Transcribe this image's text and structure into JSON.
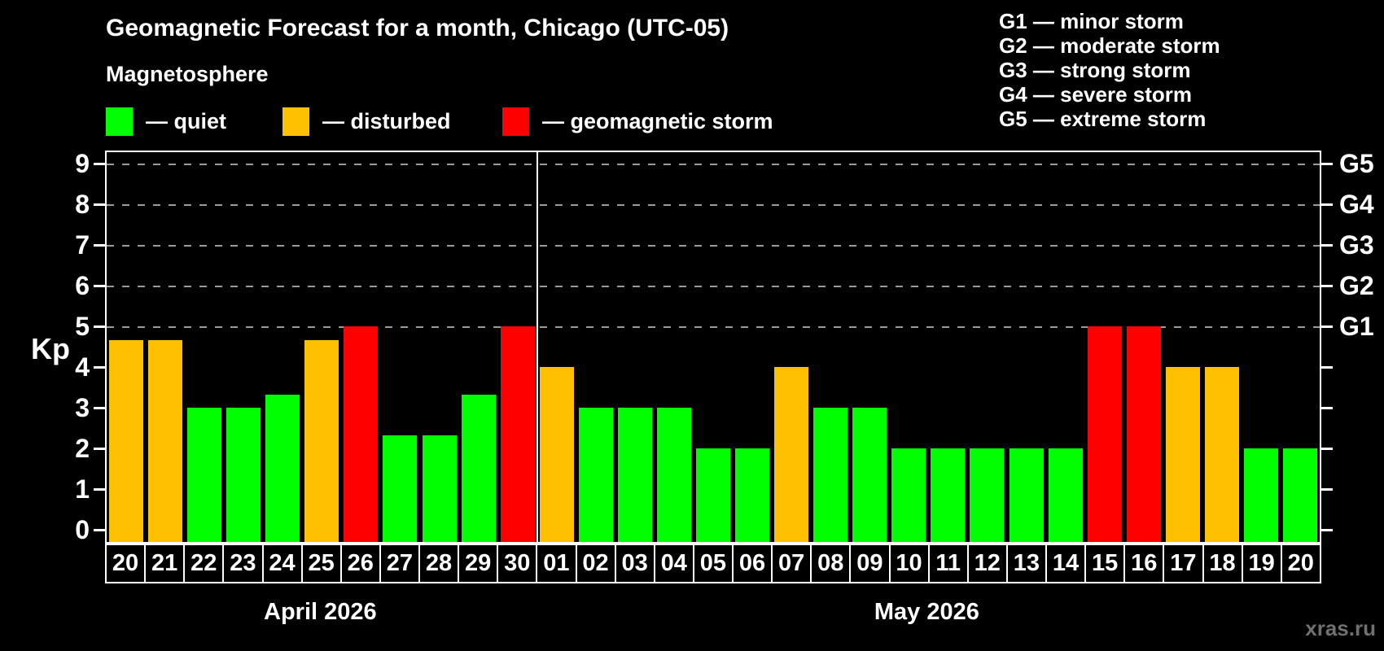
{
  "title": "Geomagnetic Forecast for a month, Chicago (UTC-05)",
  "subtitle": "Magnetosphere",
  "legend": {
    "items": [
      {
        "status": "quiet",
        "label": "— quiet",
        "color": "#00ff00"
      },
      {
        "status": "disturbed",
        "label": "— disturbed",
        "color": "#ffc000"
      },
      {
        "status": "storm",
        "label": "— geomagnetic storm",
        "color": "#ff0000"
      }
    ]
  },
  "g_scale_legend": [
    "G1 — minor storm",
    "G2 — moderate storm",
    "G3 — strong storm",
    "G4 — severe storm",
    "G5 — extreme storm"
  ],
  "watermark": "xras.ru",
  "colors": {
    "background": "#000000",
    "axis": "#ffffff",
    "grid": "#9a9a9a",
    "watermark": "#707070"
  },
  "chart_data": {
    "type": "bar",
    "title": "Geomagnetic Forecast for a month, Chicago (UTC-05)",
    "ylabel": "Kp",
    "ylim": [
      0,
      9.4
    ],
    "yticks": [
      "0",
      "1",
      "2",
      "3",
      "4",
      "5",
      "6",
      "7",
      "8",
      "9"
    ],
    "grid_levels": [
      5,
      6,
      7,
      8,
      9
    ],
    "right_axis": [
      {
        "kp": 5,
        "label": "G1"
      },
      {
        "kp": 6,
        "label": "G2"
      },
      {
        "kp": 7,
        "label": "G3"
      },
      {
        "kp": 8,
        "label": "G4"
      },
      {
        "kp": 9,
        "label": "G5"
      }
    ],
    "months": [
      {
        "label": "April 2026",
        "start_index": 0,
        "days": 11
      },
      {
        "label": "May 2026",
        "start_index": 11,
        "days": 20
      }
    ],
    "categories": [
      "20",
      "21",
      "22",
      "23",
      "24",
      "25",
      "26",
      "27",
      "28",
      "29",
      "30",
      "01",
      "02",
      "03",
      "04",
      "05",
      "06",
      "07",
      "08",
      "09",
      "10",
      "11",
      "12",
      "13",
      "14",
      "15",
      "16",
      "17",
      "18",
      "19",
      "20"
    ],
    "values": [
      4.67,
      4.67,
      3,
      3,
      3.33,
      4.67,
      5,
      2.33,
      2.33,
      3.33,
      5,
      4,
      3,
      3,
      3,
      2,
      2,
      4,
      3,
      3,
      2,
      2,
      2,
      2,
      2,
      5,
      5,
      4,
      4,
      2,
      2
    ],
    "statuses": [
      "disturbed",
      "disturbed",
      "quiet",
      "quiet",
      "quiet",
      "disturbed",
      "storm",
      "quiet",
      "quiet",
      "quiet",
      "storm",
      "disturbed",
      "quiet",
      "quiet",
      "quiet",
      "quiet",
      "quiet",
      "disturbed",
      "quiet",
      "quiet",
      "quiet",
      "quiet",
      "quiet",
      "quiet",
      "quiet",
      "storm",
      "storm",
      "disturbed",
      "disturbed",
      "quiet",
      "quiet"
    ]
  }
}
